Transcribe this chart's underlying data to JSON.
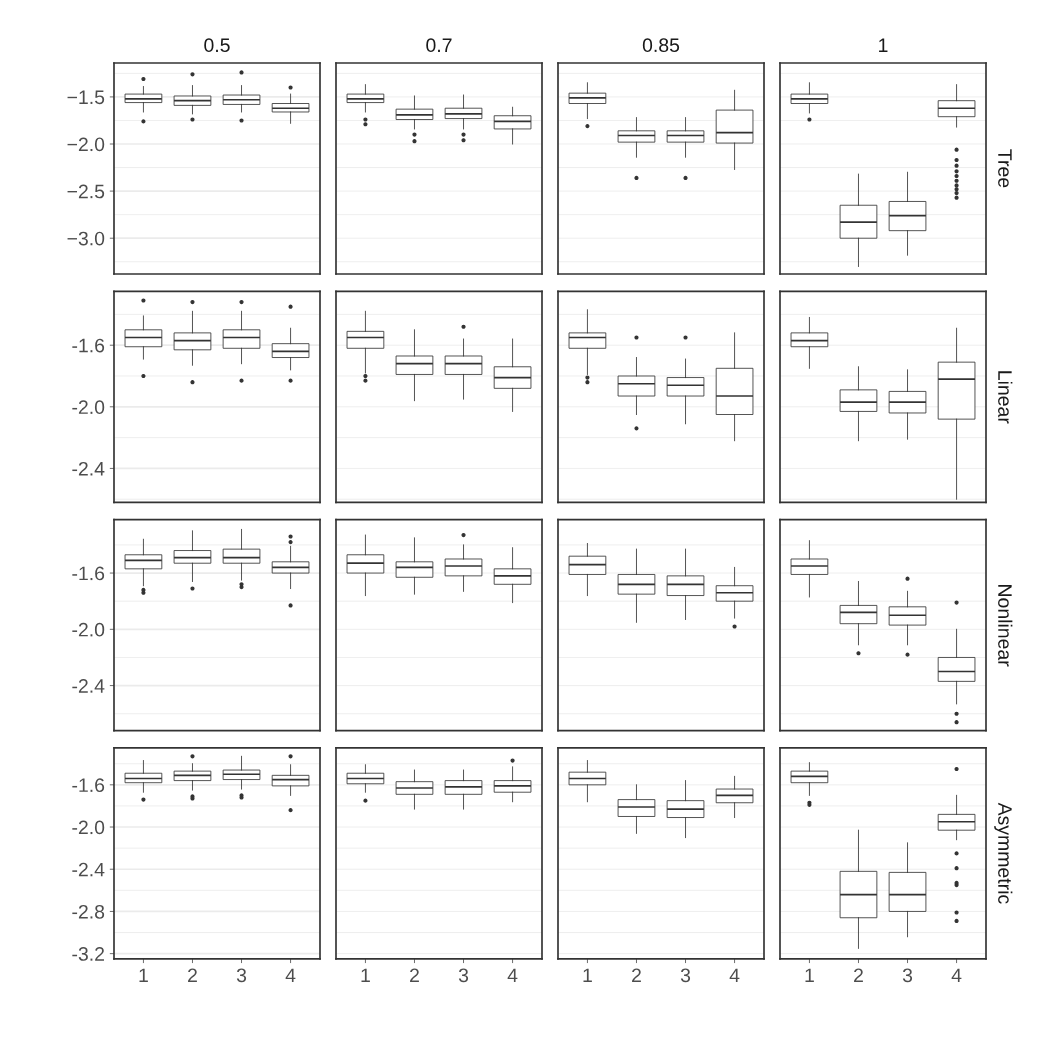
{
  "chart_data": [
    {
      "type": "box",
      "title": "0.5",
      "categories": [
        "1",
        "2",
        "3",
        "4"
      ],
      "ylim": [
        -3.38,
        -1.14
      ],
      "yticks": [
        {
          "value": -1.25,
          "label": null
        },
        {
          "value": -1.5,
          "label": "−1.5"
        },
        {
          "value": -1.75,
          "label": null
        },
        {
          "value": -2.0,
          "label": "−2.0"
        },
        {
          "value": -2.25,
          "label": null
        },
        {
          "value": -2.5,
          "label": "−2.5"
        },
        {
          "value": -2.75,
          "label": null
        },
        {
          "value": -3.0,
          "label": "−3.0"
        },
        {
          "value": -3.25,
          "label": null
        }
      ],
      "grid": "y",
      "tick_labels": "y",
      "boxes": [
        {
          "low": -1.66,
          "q1": -1.56,
          "median": -1.52,
          "q3": -1.47,
          "high": -1.39,
          "outliers": [
            -1.31,
            -1.76
          ]
        },
        {
          "low": -1.68,
          "q1": -1.59,
          "median": -1.54,
          "q3": -1.49,
          "high": -1.38,
          "outliers": [
            -1.26,
            -1.74
          ]
        },
        {
          "low": -1.66,
          "q1": -1.58,
          "median": -1.53,
          "q3": -1.48,
          "high": -1.38,
          "outliers": [
            -1.24,
            -1.75
          ]
        },
        {
          "low": -1.78,
          "q1": -1.66,
          "median": -1.62,
          "q3": -1.57,
          "high": -1.47,
          "outliers": [
            -1.4
          ]
        }
      ]
    },
    {
      "type": "box",
      "title": "0.7",
      "categories": [
        "1",
        "2",
        "3",
        "4"
      ],
      "ylim": [
        -3.38,
        -1.14
      ],
      "yticks": [
        {
          "value": -1.25,
          "label": null
        },
        {
          "value": -1.5,
          "label": null
        },
        {
          "value": -1.75,
          "label": null
        },
        {
          "value": -2.0,
          "label": null
        },
        {
          "value": -2.25,
          "label": null
        },
        {
          "value": -2.5,
          "label": null
        },
        {
          "value": -2.75,
          "label": null
        },
        {
          "value": -3.0,
          "label": null
        },
        {
          "value": -3.25,
          "label": null
        }
      ],
      "grid": "y",
      "tick_labels": false,
      "boxes": [
        {
          "low": -1.66,
          "q1": -1.56,
          "median": -1.52,
          "q3": -1.47,
          "high": -1.37,
          "outliers": [
            -1.74,
            -1.79
          ]
        },
        {
          "low": -1.84,
          "q1": -1.74,
          "median": -1.69,
          "q3": -1.63,
          "high": -1.49,
          "outliers": [
            -1.9,
            -1.97
          ]
        },
        {
          "low": -1.84,
          "q1": -1.73,
          "median": -1.68,
          "q3": -1.62,
          "high": -1.48,
          "outliers": [
            -1.9,
            -1.96
          ]
        },
        {
          "low": -2.0,
          "q1": -1.84,
          "median": -1.76,
          "q3": -1.7,
          "high": -1.61
        }
      ]
    },
    {
      "type": "box",
      "title": "0.85",
      "categories": [
        "1",
        "2",
        "3",
        "4"
      ],
      "ylim": [
        -3.38,
        -1.14
      ],
      "yticks": [
        {
          "value": -1.25,
          "label": null
        },
        {
          "value": -1.5,
          "label": null
        },
        {
          "value": -1.75,
          "label": null
        },
        {
          "value": -2.0,
          "label": null
        },
        {
          "value": -2.25,
          "label": null
        },
        {
          "value": -2.5,
          "label": null
        },
        {
          "value": -2.75,
          "label": null
        },
        {
          "value": -3.0,
          "label": null
        },
        {
          "value": -3.25,
          "label": null
        }
      ],
      "grid": "y",
      "tick_labels": false,
      "boxes": [
        {
          "low": -1.73,
          "q1": -1.57,
          "median": -1.51,
          "q3": -1.46,
          "high": -1.35,
          "outliers": [
            -1.81
          ]
        },
        {
          "low": -2.14,
          "q1": -1.98,
          "median": -1.91,
          "q3": -1.86,
          "high": -1.72,
          "outliers": [
            -2.36
          ]
        },
        {
          "low": -2.14,
          "q1": -1.98,
          "median": -1.91,
          "q3": -1.86,
          "high": -1.72,
          "outliers": [
            -2.36
          ]
        },
        {
          "low": -2.27,
          "q1": -1.99,
          "median": -1.88,
          "q3": -1.64,
          "high": -1.43
        }
      ]
    },
    {
      "type": "box",
      "title": "1",
      "y2label": "Tree",
      "categories": [
        "1",
        "2",
        "3",
        "4"
      ],
      "ylim": [
        -3.38,
        -1.14
      ],
      "yticks": [
        {
          "value": -1.25,
          "label": null
        },
        {
          "value": -1.5,
          "label": null
        },
        {
          "value": -1.75,
          "label": null
        },
        {
          "value": -2.0,
          "label": null
        },
        {
          "value": -2.25,
          "label": null
        },
        {
          "value": -2.5,
          "label": null
        },
        {
          "value": -2.75,
          "label": null
        },
        {
          "value": -3.0,
          "label": null
        },
        {
          "value": -3.25,
          "label": null
        }
      ],
      "grid": "y",
      "tick_labels": false,
      "boxes": [
        {
          "low": -1.67,
          "q1": -1.57,
          "median": -1.52,
          "q3": -1.47,
          "high": -1.35,
          "outliers": [
            -1.74
          ]
        },
        {
          "low": -3.3,
          "q1": -3.0,
          "median": -2.83,
          "q3": -2.65,
          "high": -2.32
        },
        {
          "low": -3.18,
          "q1": -2.92,
          "median": -2.76,
          "q3": -2.61,
          "high": -2.3
        },
        {
          "low": -1.82,
          "q1": -1.71,
          "median": -1.62,
          "q3": -1.54,
          "high": -1.37,
          "outliers": [
            -2.06,
            -2.17,
            -2.23,
            -2.29,
            -2.34,
            -2.39,
            -2.44,
            -2.48,
            -2.52,
            -2.57
          ]
        }
      ]
    },
    {
      "type": "box",
      "categories": [
        "1",
        "2",
        "3",
        "4"
      ],
      "ylim": [
        -2.62,
        -1.25
      ],
      "yticks": [
        {
          "value": -1.4,
          "label": null
        },
        {
          "value": -1.6,
          "label": "-1.6"
        },
        {
          "value": -1.8,
          "label": null
        },
        {
          "value": -2.0,
          "label": "-2.0"
        },
        {
          "value": -2.2,
          "label": null
        },
        {
          "value": -2.4,
          "label": "-2.4"
        },
        {
          "value": -2.6,
          "label": null
        }
      ],
      "grid": "y",
      "tick_labels": "y",
      "boxes": [
        {
          "low": -1.69,
          "q1": -1.61,
          "median": -1.55,
          "q3": -1.5,
          "high": -1.41,
          "outliers": [
            -1.31,
            -1.8
          ]
        },
        {
          "low": -1.73,
          "q1": -1.63,
          "median": -1.57,
          "q3": -1.52,
          "high": -1.38,
          "outliers": [
            -1.32,
            -1.84
          ]
        },
        {
          "low": -1.72,
          "q1": -1.62,
          "median": -1.55,
          "q3": -1.5,
          "high": -1.38,
          "outliers": [
            -1.32,
            -1.83
          ]
        },
        {
          "low": -1.76,
          "q1": -1.68,
          "median": -1.64,
          "q3": -1.59,
          "high": -1.49,
          "outliers": [
            -1.35,
            -1.83
          ]
        }
      ]
    },
    {
      "type": "box",
      "categories": [
        "1",
        "2",
        "3",
        "4"
      ],
      "ylim": [
        -2.62,
        -1.25
      ],
      "yticks": [
        {
          "value": -1.4,
          "label": null
        },
        {
          "value": -1.6,
          "label": null
        },
        {
          "value": -1.8,
          "label": null
        },
        {
          "value": -2.0,
          "label": null
        },
        {
          "value": -2.2,
          "label": null
        },
        {
          "value": -2.4,
          "label": null
        },
        {
          "value": -2.6,
          "label": null
        }
      ],
      "grid": "y",
      "tick_labels": false,
      "boxes": [
        {
          "low": -1.78,
          "q1": -1.62,
          "median": -1.55,
          "q3": -1.51,
          "high": -1.38,
          "outliers": [
            -1.8,
            -1.83
          ]
        },
        {
          "low": -1.96,
          "q1": -1.79,
          "median": -1.72,
          "q3": -1.67,
          "high": -1.5
        },
        {
          "low": -1.95,
          "q1": -1.79,
          "median": -1.72,
          "q3": -1.67,
          "high": -1.56,
          "outliers": [
            -1.48
          ]
        },
        {
          "low": -2.03,
          "q1": -1.88,
          "median": -1.81,
          "q3": -1.74,
          "high": -1.56
        }
      ]
    },
    {
      "type": "box",
      "categories": [
        "1",
        "2",
        "3",
        "4"
      ],
      "ylim": [
        -2.62,
        -1.25
      ],
      "yticks": [
        {
          "value": -1.4,
          "label": null
        },
        {
          "value": -1.6,
          "label": null
        },
        {
          "value": -1.8,
          "label": null
        },
        {
          "value": -2.0,
          "label": null
        },
        {
          "value": -2.2,
          "label": null
        },
        {
          "value": -2.4,
          "label": null
        },
        {
          "value": -2.6,
          "label": null
        }
      ],
      "grid": "y",
      "tick_labels": false,
      "boxes": [
        {
          "low": -1.79,
          "q1": -1.62,
          "median": -1.55,
          "q3": -1.52,
          "high": -1.37,
          "outliers": [
            -1.81,
            -1.84
          ]
        },
        {
          "low": -2.05,
          "q1": -1.93,
          "median": -1.85,
          "q3": -1.8,
          "high": -1.68,
          "outliers": [
            -1.55,
            -2.14
          ]
        },
        {
          "low": -2.11,
          "q1": -1.93,
          "median": -1.86,
          "q3": -1.81,
          "high": -1.69,
          "outliers": [
            -1.55
          ]
        },
        {
          "low": -2.22,
          "q1": -2.05,
          "median": -1.93,
          "q3": -1.75,
          "high": -1.52
        }
      ]
    },
    {
      "type": "box",
      "y2label": "Linear",
      "categories": [
        "1",
        "2",
        "3",
        "4"
      ],
      "ylim": [
        -2.62,
        -1.25
      ],
      "yticks": [
        {
          "value": -1.4,
          "label": null
        },
        {
          "value": -1.6,
          "label": null
        },
        {
          "value": -1.8,
          "label": null
        },
        {
          "value": -2.0,
          "label": null
        },
        {
          "value": -2.2,
          "label": null
        },
        {
          "value": -2.4,
          "label": null
        },
        {
          "value": -2.6,
          "label": null
        }
      ],
      "grid": "y",
      "tick_labels": false,
      "boxes": [
        {
          "low": -1.75,
          "q1": -1.61,
          "median": -1.57,
          "q3": -1.52,
          "high": -1.42
        },
        {
          "low": -2.22,
          "q1": -2.03,
          "median": -1.97,
          "q3": -1.89,
          "high": -1.74
        },
        {
          "low": -2.21,
          "q1": -2.04,
          "median": -1.97,
          "q3": -1.9,
          "high": -1.76
        },
        {
          "low": -2.6,
          "q1": -2.08,
          "median": -1.82,
          "q3": -1.71,
          "high": -1.49
        }
      ]
    },
    {
      "type": "box",
      "categories": [
        "1",
        "2",
        "3",
        "4"
      ],
      "ylim": [
        -2.72,
        -1.22
      ],
      "yticks": [
        {
          "value": -1.4,
          "label": null
        },
        {
          "value": -1.6,
          "label": "-1.6"
        },
        {
          "value": -1.8,
          "label": null
        },
        {
          "value": -2.0,
          "label": "-2.0"
        },
        {
          "value": -2.2,
          "label": null
        },
        {
          "value": -2.4,
          "label": "-2.4"
        },
        {
          "value": -2.6,
          "label": null
        }
      ],
      "grid": "y",
      "tick_labels": "y",
      "boxes": [
        {
          "low": -1.69,
          "q1": -1.57,
          "median": -1.51,
          "q3": -1.47,
          "high": -1.36,
          "outliers": [
            -1.72,
            -1.74
          ]
        },
        {
          "low": -1.66,
          "q1": -1.53,
          "median": -1.49,
          "q3": -1.44,
          "high": -1.3,
          "outliers": [
            -1.71
          ]
        },
        {
          "low": -1.65,
          "q1": -1.53,
          "median": -1.49,
          "q3": -1.43,
          "high": -1.29,
          "outliers": [
            -1.68,
            -1.7
          ]
        },
        {
          "low": -1.71,
          "q1": -1.6,
          "median": -1.56,
          "q3": -1.52,
          "high": -1.41,
          "outliers": [
            -1.34,
            -1.38,
            -1.83
          ]
        }
      ]
    },
    {
      "type": "box",
      "categories": [
        "1",
        "2",
        "3",
        "4"
      ],
      "ylim": [
        -2.72,
        -1.22
      ],
      "yticks": [
        {
          "value": -1.4,
          "label": null
        },
        {
          "value": -1.6,
          "label": null
        },
        {
          "value": -1.8,
          "label": null
        },
        {
          "value": -2.0,
          "label": null
        },
        {
          "value": -2.2,
          "label": null
        },
        {
          "value": -2.4,
          "label": null
        },
        {
          "value": -2.6,
          "label": null
        }
      ],
      "grid": "y",
      "tick_labels": false,
      "boxes": [
        {
          "low": -1.76,
          "q1": -1.6,
          "median": -1.53,
          "q3": -1.47,
          "high": -1.33
        },
        {
          "low": -1.75,
          "q1": -1.63,
          "median": -1.56,
          "q3": -1.52,
          "high": -1.35
        },
        {
          "low": -1.73,
          "q1": -1.62,
          "median": -1.55,
          "q3": -1.5,
          "high": -1.4,
          "outliers": [
            -1.33
          ]
        },
        {
          "low": -1.81,
          "q1": -1.68,
          "median": -1.62,
          "q3": -1.57,
          "high": -1.42
        }
      ]
    },
    {
      "type": "box",
      "categories": [
        "1",
        "2",
        "3",
        "4"
      ],
      "ylim": [
        -2.72,
        -1.22
      ],
      "yticks": [
        {
          "value": -1.4,
          "label": null
        },
        {
          "value": -1.6,
          "label": null
        },
        {
          "value": -1.8,
          "label": null
        },
        {
          "value": -2.0,
          "label": null
        },
        {
          "value": -2.2,
          "label": null
        },
        {
          "value": -2.4,
          "label": null
        },
        {
          "value": -2.6,
          "label": null
        }
      ],
      "grid": "y",
      "tick_labels": false,
      "boxes": [
        {
          "low": -1.76,
          "q1": -1.61,
          "median": -1.54,
          "q3": -1.48,
          "high": -1.39
        },
        {
          "low": -1.95,
          "q1": -1.75,
          "median": -1.68,
          "q3": -1.61,
          "high": -1.43
        },
        {
          "low": -1.93,
          "q1": -1.76,
          "median": -1.68,
          "q3": -1.62,
          "high": -1.43
        },
        {
          "low": -1.92,
          "q1": -1.8,
          "median": -1.74,
          "q3": -1.69,
          "high": -1.56,
          "outliers": [
            -1.98
          ]
        }
      ]
    },
    {
      "type": "box",
      "y2label": "Nonlinear",
      "categories": [
        "1",
        "2",
        "3",
        "4"
      ],
      "ylim": [
        -2.72,
        -1.22
      ],
      "yticks": [
        {
          "value": -1.4,
          "label": null
        },
        {
          "value": -1.6,
          "label": null
        },
        {
          "value": -1.8,
          "label": null
        },
        {
          "value": -2.0,
          "label": null
        },
        {
          "value": -2.2,
          "label": null
        },
        {
          "value": -2.4,
          "label": null
        },
        {
          "value": -2.6,
          "label": null
        }
      ],
      "grid": "y",
      "tick_labels": false,
      "boxes": [
        {
          "low": -1.77,
          "q1": -1.61,
          "median": -1.55,
          "q3": -1.5,
          "high": -1.37
        },
        {
          "low": -2.11,
          "q1": -1.96,
          "median": -1.88,
          "q3": -1.83,
          "high": -1.66,
          "outliers": [
            -2.17
          ]
        },
        {
          "low": -2.11,
          "q1": -1.97,
          "median": -1.9,
          "q3": -1.84,
          "high": -1.73,
          "outliers": [
            -1.64,
            -2.18
          ]
        },
        {
          "low": -2.53,
          "q1": -2.37,
          "median": -2.3,
          "q3": -2.2,
          "high": -2.0,
          "outliers": [
            -1.81,
            -2.6,
            -2.66
          ]
        }
      ]
    },
    {
      "type": "box",
      "categories": [
        "1",
        "2",
        "3",
        "4"
      ],
      "ylim": [
        -3.25,
        -1.25
      ],
      "yticks": [
        {
          "value": -1.4,
          "label": null
        },
        {
          "value": -1.6,
          "label": "-1.6"
        },
        {
          "value": -1.8,
          "label": null
        },
        {
          "value": -2.0,
          "label": "-2.0"
        },
        {
          "value": -2.2,
          "label": null
        },
        {
          "value": -2.4,
          "label": "-2.4"
        },
        {
          "value": -2.6,
          "label": null
        },
        {
          "value": -2.8,
          "label": "-2.8"
        },
        {
          "value": -3.0,
          "label": null
        },
        {
          "value": -3.2,
          "label": "-3.2"
        }
      ],
      "grid": "y",
      "boxes": [
        {
          "low": -1.67,
          "q1": -1.58,
          "median": -1.54,
          "q3": -1.49,
          "high": -1.37,
          "outliers": [
            -1.74
          ]
        },
        {
          "low": -1.65,
          "q1": -1.56,
          "median": -1.51,
          "q3": -1.47,
          "high": -1.4,
          "outliers": [
            -1.33,
            -1.71,
            -1.73
          ]
        },
        {
          "low": -1.64,
          "q1": -1.55,
          "median": -1.5,
          "q3": -1.46,
          "high": -1.33,
          "outliers": [
            -1.7,
            -1.72
          ]
        },
        {
          "low": -1.7,
          "q1": -1.61,
          "median": -1.55,
          "q3": -1.51,
          "high": -1.41,
          "outliers": [
            -1.33,
            -1.84
          ]
        }
      ]
    },
    {
      "type": "box",
      "categories": [
        "1",
        "2",
        "3",
        "4"
      ],
      "ylim": [
        -3.25,
        -1.25
      ],
      "yticks": [
        {
          "value": -1.4,
          "label": null
        },
        {
          "value": -1.6,
          "label": null
        },
        {
          "value": -1.8,
          "label": null
        },
        {
          "value": -2.0,
          "label": null
        },
        {
          "value": -2.2,
          "label": null
        },
        {
          "value": -2.4,
          "label": null
        },
        {
          "value": -2.6,
          "label": null
        },
        {
          "value": -2.8,
          "label": null
        },
        {
          "value": -3.0,
          "label": null
        },
        {
          "value": -3.2,
          "label": null
        }
      ],
      "grid": "y",
      "tick_labels": "x",
      "boxes": [
        {
          "low": -1.67,
          "q1": -1.59,
          "median": -1.54,
          "q3": -1.49,
          "high": -1.41,
          "outliers": [
            -1.75
          ]
        },
        {
          "low": -1.83,
          "q1": -1.69,
          "median": -1.63,
          "q3": -1.57,
          "high": -1.46
        },
        {
          "low": -1.83,
          "q1": -1.69,
          "median": -1.62,
          "q3": -1.56,
          "high": -1.46
        },
        {
          "low": -1.76,
          "q1": -1.67,
          "median": -1.61,
          "q3": -1.56,
          "high": -1.43,
          "outliers": [
            -1.37
          ]
        }
      ]
    },
    {
      "type": "box",
      "categories": [
        "1",
        "2",
        "3",
        "4"
      ],
      "ylim": [
        -3.25,
        -1.25
      ],
      "yticks": [
        {
          "value": -1.4,
          "label": null
        },
        {
          "value": -1.6,
          "label": null
        },
        {
          "value": -1.8,
          "label": null
        },
        {
          "value": -2.0,
          "label": null
        },
        {
          "value": -2.2,
          "label": null
        },
        {
          "value": -2.4,
          "label": null
        },
        {
          "value": -2.6,
          "label": null
        },
        {
          "value": -2.8,
          "label": null
        },
        {
          "value": -3.0,
          "label": null
        },
        {
          "value": -3.2,
          "label": null
        }
      ],
      "grid": "y",
      "tick_labels": "x",
      "boxes": [
        {
          "low": -1.76,
          "q1": -1.6,
          "median": -1.54,
          "q3": -1.48,
          "high": -1.37
        },
        {
          "low": -2.06,
          "q1": -1.9,
          "median": -1.81,
          "q3": -1.74,
          "high": -1.6
        },
        {
          "low": -2.1,
          "q1": -1.91,
          "median": -1.83,
          "q3": -1.75,
          "high": -1.56
        },
        {
          "low": -1.91,
          "q1": -1.77,
          "median": -1.7,
          "q3": -1.64,
          "high": -1.52
        }
      ]
    },
    {
      "type": "box",
      "y2label": "Asymmetric",
      "categories": [
        "1",
        "2",
        "3",
        "4"
      ],
      "ylim": [
        -3.25,
        -1.25
      ],
      "yticks": [
        {
          "value": -1.4,
          "label": null
        },
        {
          "value": -1.6,
          "label": null
        },
        {
          "value": -1.8,
          "label": null
        },
        {
          "value": -2.0,
          "label": null
        },
        {
          "value": -2.2,
          "label": null
        },
        {
          "value": -2.4,
          "label": null
        },
        {
          "value": -2.6,
          "label": null
        },
        {
          "value": -2.8,
          "label": null
        },
        {
          "value": -3.0,
          "label": null
        },
        {
          "value": -3.2,
          "label": null
        }
      ],
      "grid": "y",
      "tick_labels": "x",
      "boxes": [
        {
          "low": -1.7,
          "q1": -1.58,
          "median": -1.52,
          "q3": -1.47,
          "high": -1.39,
          "outliers": [
            -1.77,
            -1.79
          ]
        },
        {
          "low": -3.15,
          "q1": -2.86,
          "median": -2.64,
          "q3": -2.42,
          "high": -2.03
        },
        {
          "low": -3.04,
          "q1": -2.8,
          "median": -2.64,
          "q3": -2.43,
          "high": -2.15
        },
        {
          "low": -2.12,
          "q1": -2.03,
          "median": -1.95,
          "q3": -1.88,
          "high": -1.7,
          "outliers": [
            -1.45,
            -2.25,
            -2.39,
            -2.53,
            -2.55,
            -2.81,
            -2.89
          ]
        }
      ]
    }
  ]
}
